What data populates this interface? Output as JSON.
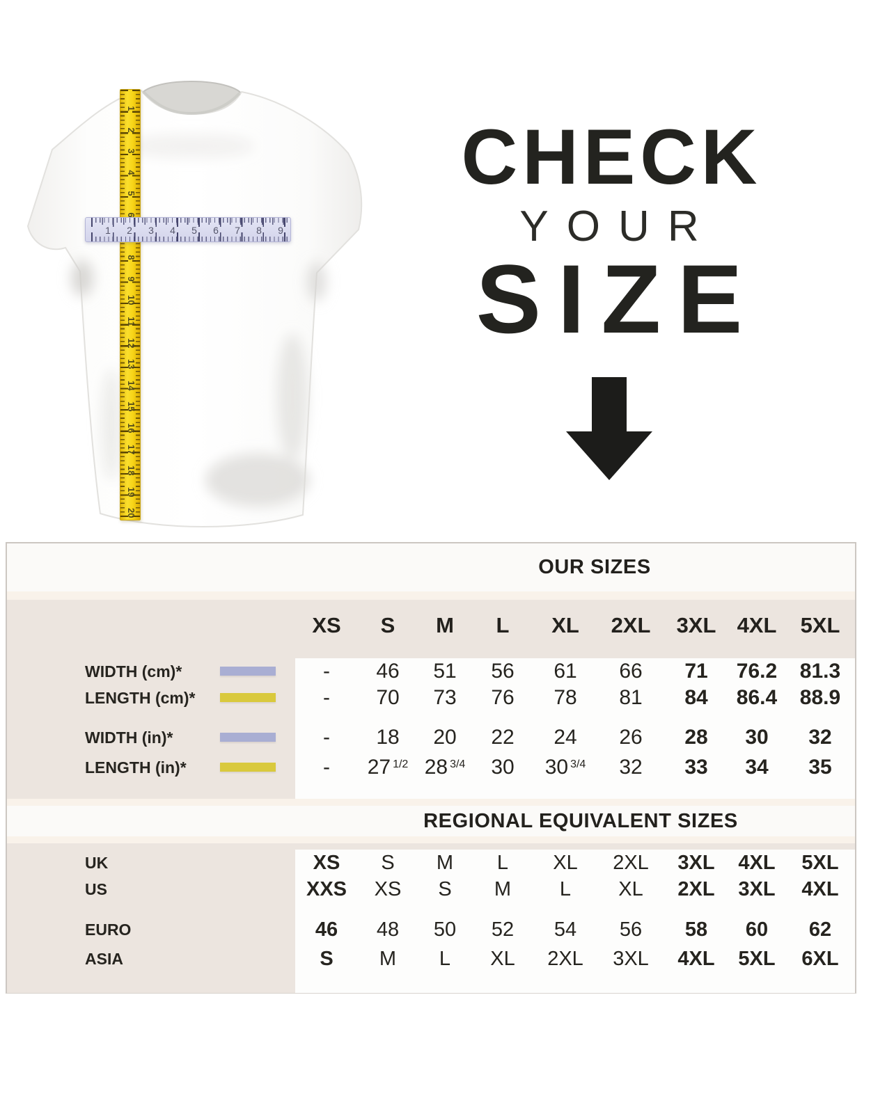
{
  "hero": {
    "line1": "CHECK",
    "line2": "YOUR",
    "line3": "SIZE"
  },
  "rulers": {
    "vertical_numbers": [
      "1",
      "2",
      "3",
      "4",
      "5",
      "6",
      "7",
      "8",
      "9",
      "10",
      "11",
      "12",
      "13",
      "14",
      "15",
      "16",
      "17",
      "18",
      "19",
      "20"
    ],
    "horizontal_numbers": [
      "1",
      "2",
      "3",
      "4",
      "5",
      "6",
      "7",
      "8",
      "9"
    ]
  },
  "colors": {
    "lavender": "#a9aed3",
    "yellow": "#d9c93d",
    "ruler_yellow": "#f7d416",
    "ruler_lavender": "#d8d9ee",
    "ink": "#24221e",
    "beige": "#ece5df"
  },
  "table": {
    "our_sizes_title": "OUR SIZES",
    "regional_title": "REGIONAL EQUIVALENT SIZES",
    "sizes": [
      "XS",
      "S",
      "M",
      "L",
      "XL",
      "2XL",
      "3XL",
      "4XL",
      "5XL"
    ],
    "measurement_rows": [
      {
        "label": "WIDTH (cm)*",
        "swatch": "lavender",
        "values": [
          "-",
          "46",
          "51",
          "56",
          "61",
          "66",
          "71",
          "76.2",
          "81.3"
        ],
        "bold": [
          6,
          7,
          8
        ]
      },
      {
        "label": "LENGTH (cm)*",
        "swatch": "yellow",
        "values": [
          "-",
          "70",
          "73",
          "76",
          "78",
          "81",
          "84",
          "86.4",
          "88.9"
        ],
        "bold": [
          6,
          7,
          8
        ]
      },
      {
        "label": "WIDTH (in)*",
        "swatch": "lavender",
        "values": [
          "-",
          "18",
          "20",
          "22",
          "24",
          "26",
          "28",
          "30",
          "32"
        ],
        "bold": [
          6,
          7,
          8
        ]
      },
      {
        "label": "LENGTH (in)*",
        "swatch": "yellow",
        "values": [
          "-",
          "27 1/2",
          "28 3/4",
          "30",
          "30 3/4",
          "32",
          "33",
          "34",
          "35"
        ],
        "bold": [
          6,
          7,
          8
        ]
      }
    ],
    "regional_rows": [
      {
        "label": "UK",
        "values": [
          "XS",
          "S",
          "M",
          "L",
          "XL",
          "2XL",
          "3XL",
          "4XL",
          "5XL"
        ],
        "bold": [
          0,
          6,
          7,
          8
        ]
      },
      {
        "label": "US",
        "values": [
          "XXS",
          "XS",
          "S",
          "M",
          "L",
          "XL",
          "2XL",
          "3XL",
          "4XL"
        ],
        "bold": [
          0,
          6,
          7,
          8
        ]
      },
      {
        "label": "EURO",
        "values": [
          "46",
          "48",
          "50",
          "52",
          "54",
          "56",
          "58",
          "60",
          "62"
        ],
        "bold": [
          0,
          6,
          7,
          8
        ]
      },
      {
        "label": "ASIA",
        "values": [
          "S",
          "M",
          "L",
          "XL",
          "2XL",
          "3XL",
          "4XL",
          "5XL",
          "6XL"
        ],
        "bold": [
          0,
          6,
          7,
          8
        ]
      }
    ]
  }
}
